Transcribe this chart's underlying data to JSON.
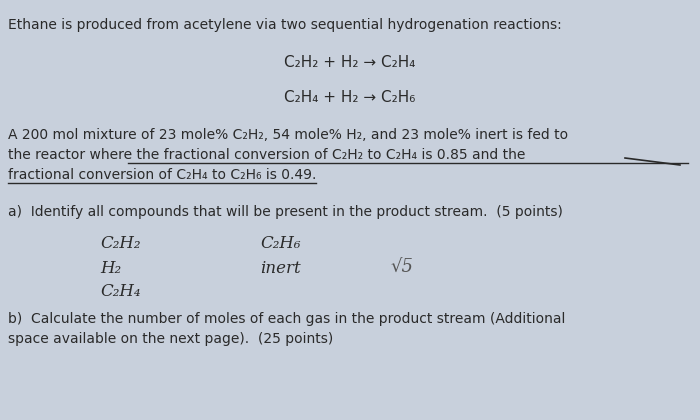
{
  "background_color": "#c8d0dc",
  "text_color": "#2a2a2a",
  "fig_width": 7.0,
  "fig_height": 4.2,
  "dpi": 100,
  "intro_line": "Ethane is produced from acetylene via two sequential hydrogenation reactions:",
  "rxn1": "C₂H₂ + H₂ → C₂H₄",
  "rxn2": "C₂H₄ + H₂ → C₂H₆",
  "problem_text_line1": "A 200 mol mixture of 23 mole% C₂H₂, 54 mole% H₂, and 23 mole% inert is fed to",
  "problem_text_line2": "the reactor where the fractional conversion of C₂H₂ to C₂H₄ is 0.85 and the",
  "problem_text_line3": "fractional conversion of C₂H₄ to C₂H₆ is 0.49.",
  "part_a": "a)  Identify all compounds that will be present in the product stream.  (5 points)",
  "hw_c2h2": "C₂H₂",
  "hw_c2h6": "C₂H₆",
  "hw_h2": "H₂",
  "hw_inert": "inert",
  "hw_check5": "√5",
  "hw_c2h4": "C₂H₄",
  "part_b_line1": "b)  Calculate the number of moles of each gas in the product stream (Additional",
  "part_b_line2": "space available on the next page).  (25 points)",
  "font_main": 10.0,
  "font_rxn": 11.0,
  "font_hw": 12.0
}
